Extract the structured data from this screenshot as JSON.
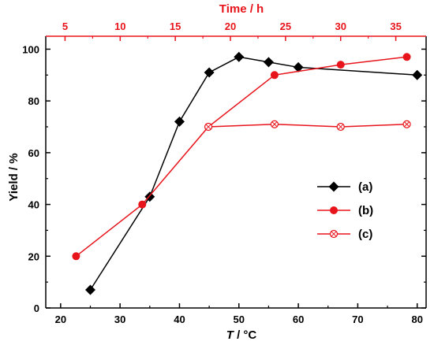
{
  "chart_data": {
    "type": "line",
    "ylabel": "Yield / %",
    "xlabel": {
      "italic": "T",
      "rest": " / °C"
    },
    "x2label": "Time / h",
    "xlim": [
      17.5,
      81.5
    ],
    "x_ticks": [
      20,
      30,
      40,
      50,
      60,
      70,
      80
    ],
    "x_tick_labels": [
      "20",
      "30",
      "40",
      "50",
      "60",
      "70",
      "80"
    ],
    "x2lim": [
      3.25,
      37.75
    ],
    "x2_ticks": [
      5,
      10,
      15,
      20,
      25,
      30,
      35
    ],
    "x2_tick_labels": [
      "5",
      "10",
      "15",
      "20",
      "25",
      "30",
      "35"
    ],
    "ylim": [
      0,
      105
    ],
    "y_ticks": [
      0,
      20,
      40,
      60,
      80,
      100
    ],
    "y_tick_labels": [
      "0",
      "20",
      "40",
      "60",
      "80",
      "100"
    ],
    "legend_position": "center-right",
    "series": [
      {
        "name": "(a)",
        "axis": "bottom",
        "color": "#000000",
        "marker": "diamond",
        "x": [
          25,
          35,
          40,
          45,
          50,
          55,
          60,
          80
        ],
        "y": [
          7,
          43,
          72,
          91,
          97,
          95,
          93,
          90
        ]
      },
      {
        "name": "(b)",
        "axis": "top",
        "color": "#e8141b",
        "marker": "circle",
        "x": [
          6,
          12,
          18,
          24,
          30,
          36
        ],
        "y": [
          20,
          40,
          70,
          90,
          94,
          97
        ]
      },
      {
        "name": "(c)",
        "axis": "top",
        "color": "#e8141b",
        "marker": "crossed-circle",
        "x": [
          18,
          24,
          30,
          36
        ],
        "y": [
          70,
          71,
          70,
          71
        ]
      }
    ]
  }
}
